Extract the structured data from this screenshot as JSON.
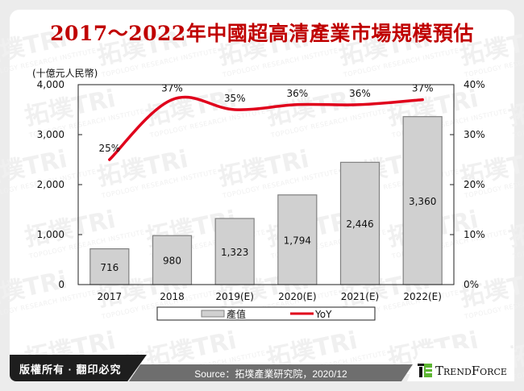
{
  "title": "2017～2022年中國超高清產業市場規模預估",
  "unit_label": "(十億元人民幣)",
  "footer": {
    "copyright": "版權所有 · 翻印必究",
    "source": "Source：拓墣產業研究院，2020/12",
    "brand": "TrendForce"
  },
  "watermark": {
    "text": "拓墣TRi",
    "subtext": "TOPOLOGY RESEARCH INSTITUTE"
  },
  "colors": {
    "title": "#c00000",
    "bar_fill": "#d0d0d0",
    "bar_stroke": "#808080",
    "line": "#e0001b",
    "footer_dark": "#1e1e1e",
    "footer_mid": "#6e6e6e",
    "brand_green": "#5cb531"
  },
  "chart_data": {
    "type": "bar+line",
    "title": "2017～2022年中國超高清產業市場規模預估",
    "categories": [
      "2017",
      "2018",
      "2019(E)",
      "2020(E)",
      "2021(E)",
      "2022(E)"
    ],
    "series": [
      {
        "name": "產值",
        "type": "bar",
        "axis": "left",
        "values": [
          716,
          980,
          1323,
          1794,
          2446,
          3360
        ],
        "labels": [
          "716",
          "980",
          "1,323",
          "1,794",
          "2,446",
          "3,360"
        ]
      },
      {
        "name": "YoY",
        "type": "line",
        "axis": "right",
        "values": [
          25,
          37,
          35,
          36,
          36,
          37
        ],
        "labels": [
          "25%",
          "37%",
          "35%",
          "36%",
          "36%",
          "37%"
        ]
      }
    ],
    "ylabel_left": "(十億元人民幣)",
    "ylim_left": [
      0,
      4000
    ],
    "yticks_left": [
      "0",
      "1,000",
      "2,000",
      "3,000",
      "4,000"
    ],
    "ylim_right": [
      0,
      40
    ],
    "yticks_right": [
      "0%",
      "10%",
      "20%",
      "30%",
      "40%"
    ],
    "legend": [
      "產值",
      "YoY"
    ],
    "legend_position": "bottom",
    "grid": false
  }
}
